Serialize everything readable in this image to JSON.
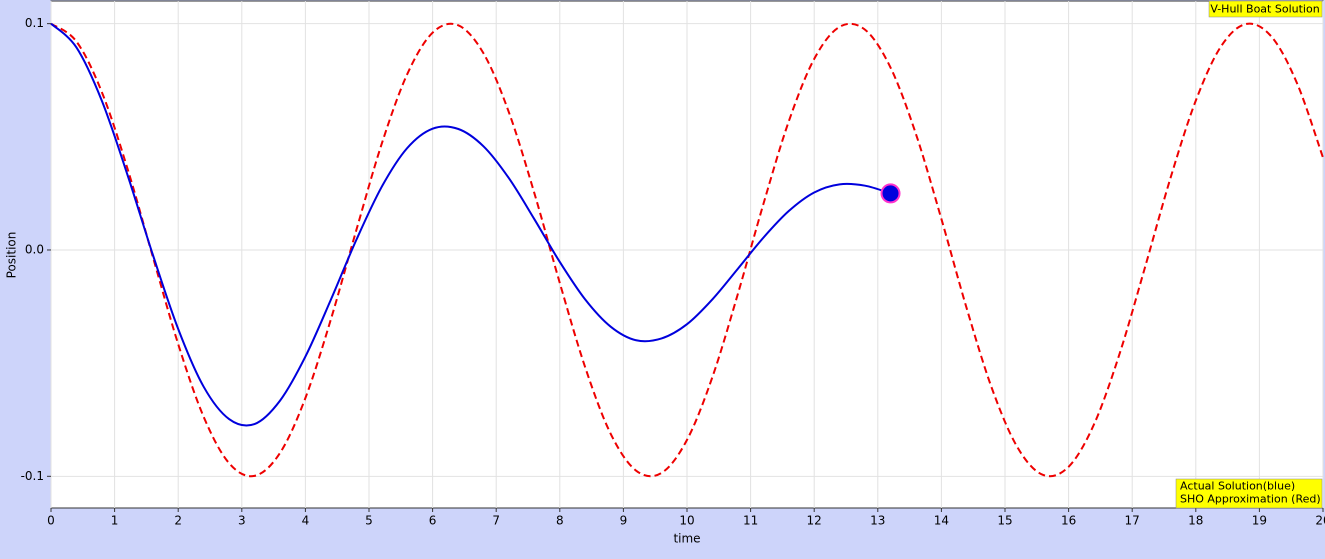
{
  "chart_data": {
    "type": "line",
    "title": "V-Hull Boat Solution",
    "xlabel": "time",
    "ylabel": "Position",
    "xlim": [
      0,
      20
    ],
    "ylim": [
      -0.114,
      0.11
    ],
    "xticks": [
      0,
      1,
      2,
      3,
      4,
      5,
      6,
      7,
      8,
      9,
      10,
      11,
      12,
      13,
      14,
      15,
      16,
      17,
      18,
      19,
      20
    ],
    "yticks": [
      -0.1,
      {
        "value": 0,
        "label": "0.0"
      },
      0.1
    ],
    "grid": true,
    "series": [
      {
        "name": "Actual Solution(blue)",
        "color": "#0000dd",
        "dashed": false,
        "x": [
          0,
          0.4,
          0.8,
          1.2,
          1.6,
          2.0,
          2.4,
          2.8,
          3.2,
          3.6,
          4.0,
          4.4,
          4.8,
          5.2,
          5.6,
          6.0,
          6.4,
          6.8,
          7.2,
          7.6,
          8.0,
          8.4,
          8.8,
          9.2,
          9.6,
          10.0,
          10.4,
          10.8,
          11.2,
          11.6,
          12.0,
          12.4,
          12.8,
          13.2
        ],
        "values": [
          0.1,
          0.0895,
          0.0659,
          0.0334,
          -0.002,
          -0.0349,
          -0.0604,
          -0.0747,
          -0.0769,
          -0.0666,
          -0.0471,
          -0.022,
          0.0044,
          0.0279,
          0.045,
          0.0536,
          0.0535,
          0.0458,
          0.0317,
          0.0136,
          -0.0053,
          -0.0219,
          -0.0339,
          -0.0399,
          -0.0391,
          -0.0328,
          -0.0218,
          -0.0083,
          0.0054,
          0.0172,
          0.0254,
          0.029,
          0.0284,
          0.025
        ]
      },
      {
        "name": "SHO Approximation (Red)",
        "color": "#ee0000",
        "dashed": true,
        "x": [
          0,
          0.4,
          0.8,
          1.2,
          1.6,
          2.0,
          2.4,
          2.8,
          3.2,
          3.6,
          4.0,
          4.4,
          4.8,
          5.2,
          5.6,
          6.0,
          6.4,
          6.8,
          7.2,
          7.6,
          8.0,
          8.4,
          8.8,
          9.2,
          9.6,
          10.0,
          10.4,
          10.8,
          11.2,
          11.6,
          12.0,
          12.4,
          12.8,
          13.2,
          13.6,
          14.0,
          14.4,
          14.8,
          15.2,
          15.6,
          16.0,
          16.4,
          16.8,
          17.2,
          17.6,
          18.0,
          18.4,
          18.8,
          19.2,
          19.6,
          20.0
        ],
        "values": [
          0.1,
          0.0921,
          0.0697,
          0.0362,
          -0.0029,
          -0.0416,
          -0.0737,
          -0.0942,
          -0.0998,
          -0.0897,
          -0.0654,
          -0.0307,
          0.0087,
          0.0469,
          0.0776,
          0.096,
          0.0993,
          0.0869,
          0.0608,
          0.0251,
          -0.0146,
          -0.0519,
          -0.0812,
          -0.0975,
          -0.0985,
          -0.0839,
          -0.0561,
          -0.0194,
          0.0202,
          0.0568,
          0.0844,
          0.0986,
          0.0973,
          0.0806,
          0.0512,
          0.0137,
          -0.026,
          -0.0616,
          -0.0874,
          -0.0994,
          -0.0958,
          -0.077,
          -0.046,
          -0.0078,
          0.0316,
          0.066,
          0.0901,
          0.0999,
          0.0939,
          0.0731,
          0.0408
        ]
      }
    ]
  }
}
